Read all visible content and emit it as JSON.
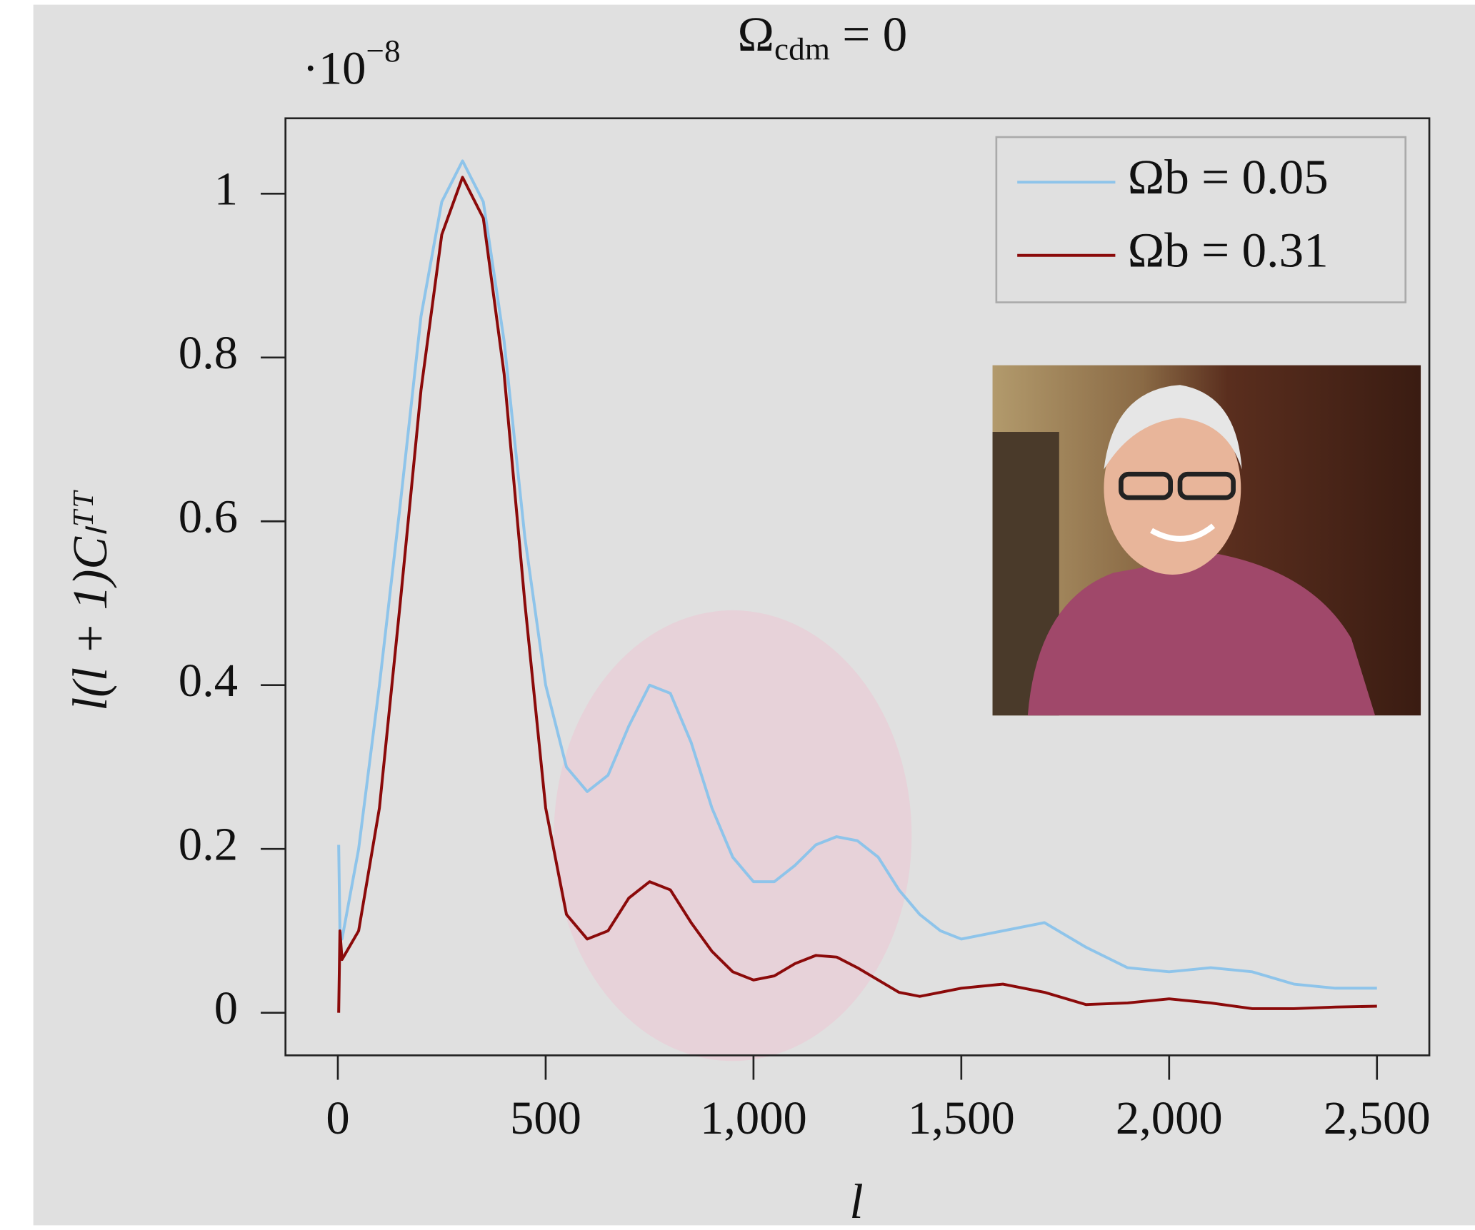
{
  "chart_data": {
    "type": "line",
    "title": {
      "symbol": "Ω",
      "subscript": "cdm",
      "rest": " = 0"
    },
    "y_multiplier": {
      "base": "·10",
      "exponent": "−8"
    },
    "x_label": "l",
    "y_label": "l(l + 1)Cₗᵀᵀ",
    "x": [
      2,
      5,
      10,
      50,
      100,
      150,
      200,
      250,
      300,
      350,
      400,
      450,
      500,
      550,
      600,
      650,
      700,
      750,
      800,
      850,
      900,
      950,
      1000,
      1050,
      1100,
      1150,
      1200,
      1250,
      1300,
      1350,
      1400,
      1450,
      1500,
      1600,
      1700,
      1800,
      1900,
      2000,
      2100,
      2200,
      2300,
      2400,
      2500
    ],
    "series": [
      {
        "name": "Ωb = 0.05",
        "color": "#8ec4ea",
        "values": [
          0.205,
          0.1,
          0.09,
          0.2,
          0.4,
          0.62,
          0.85,
          0.99,
          1.04,
          0.99,
          0.82,
          0.58,
          0.4,
          0.3,
          0.27,
          0.29,
          0.35,
          0.4,
          0.39,
          0.33,
          0.25,
          0.19,
          0.16,
          0.16,
          0.18,
          0.205,
          0.215,
          0.21,
          0.19,
          0.15,
          0.12,
          0.1,
          0.09,
          0.1,
          0.11,
          0.08,
          0.055,
          0.05,
          0.055,
          0.05,
          0.035,
          0.03,
          0.03
        ]
      },
      {
        "name": "Ωb = 0.31",
        "color": "#8b0a0a",
        "values": [
          0,
          0.1,
          0.065,
          0.1,
          0.25,
          0.5,
          0.76,
          0.95,
          1.02,
          0.97,
          0.78,
          0.5,
          0.25,
          0.12,
          0.09,
          0.1,
          0.14,
          0.16,
          0.15,
          0.11,
          0.075,
          0.05,
          0.04,
          0.045,
          0.06,
          0.07,
          0.068,
          0.055,
          0.04,
          0.025,
          0.02,
          0.025,
          0.03,
          0.035,
          0.025,
          0.01,
          0.012,
          0.017,
          0.012,
          0.005,
          0.005,
          0.007,
          0.008
        ]
      }
    ],
    "xlim": [
      -126,
      2626
    ],
    "ylim": [
      -0.052,
      1.092
    ],
    "xticks": [
      0,
      500,
      {
        "value": 1000,
        "label": "1,000"
      },
      {
        "value": 1500,
        "label": "1,500"
      },
      {
        "value": 2000,
        "label": "2,000"
      },
      {
        "value": 2500,
        "label": "2,500"
      }
    ],
    "yticks": [
      0,
      0.2,
      0.4,
      0.6,
      0.8,
      1
    ],
    "grid": false,
    "legend": "upper right"
  }
}
